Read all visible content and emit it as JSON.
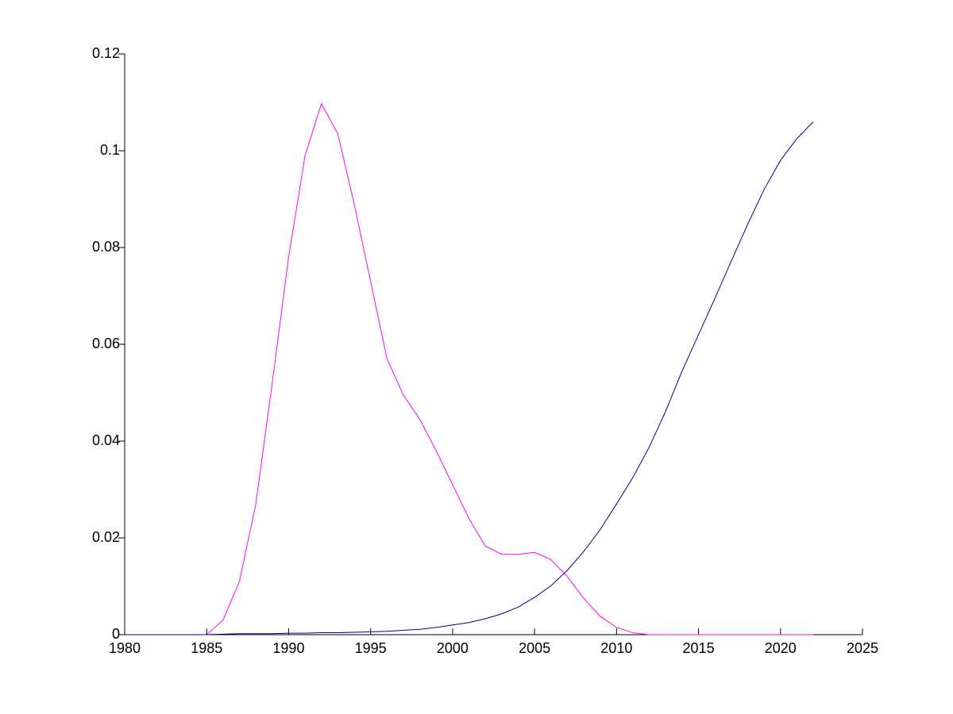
{
  "chart_data": {
    "type": "line",
    "x": [
      1980,
      1981,
      1982,
      1983,
      1984,
      1985,
      1986,
      1987,
      1988,
      1989,
      1990,
      1991,
      1992,
      1993,
      1994,
      1995,
      1996,
      1997,
      1998,
      1999,
      2000,
      2001,
      2002,
      2003,
      2004,
      2005,
      2006,
      2007,
      2008,
      2009,
      2010,
      2011,
      2012,
      2013,
      2014,
      2015,
      2016,
      2017,
      2018,
      2019,
      2020,
      2021,
      2022
    ],
    "series": [
      {
        "color": "#ff00ff",
        "values": [
          0,
          0,
          0,
          0,
          0,
          0,
          0.003,
          0.011,
          0.027,
          0.052,
          0.078,
          0.099,
          0.1097,
          0.1035,
          0.089,
          0.073,
          0.057,
          0.0495,
          0.0445,
          0.038,
          0.031,
          0.024,
          0.0183,
          0.0166,
          0.0166,
          0.017,
          0.0155,
          0.012,
          0.0075,
          0.0038,
          0.0015,
          0.0004,
          0,
          0,
          0,
          0,
          0,
          0,
          0,
          0,
          0,
          0,
          0
        ]
      },
      {
        "color": "#00008b",
        "values": [
          0,
          0,
          0,
          0,
          0,
          0,
          0.0001,
          0.0002,
          0.0002,
          0.0002,
          0.0003,
          0.0003,
          0.0004,
          0.0004,
          0.0005,
          0.0006,
          0.0007,
          0.0009,
          0.0011,
          0.0015,
          0.002,
          0.0025,
          0.0033,
          0.0043,
          0.0057,
          0.0077,
          0.0101,
          0.0133,
          0.0172,
          0.0217,
          0.027,
          0.0325,
          0.0388,
          0.0462,
          0.0545,
          0.062,
          0.0695,
          0.0772,
          0.0848,
          0.092,
          0.098,
          0.1025,
          0.106
        ]
      }
    ],
    "xlim": [
      1980,
      2025
    ],
    "xticks": [
      1980,
      1985,
      1990,
      1995,
      2000,
      2005,
      2010,
      2015,
      2020,
      2025
    ],
    "ylim": [
      0,
      0.12
    ],
    "yticks": [
      0,
      0.02,
      0.04,
      0.06,
      0.08,
      0.1,
      0.12
    ]
  }
}
